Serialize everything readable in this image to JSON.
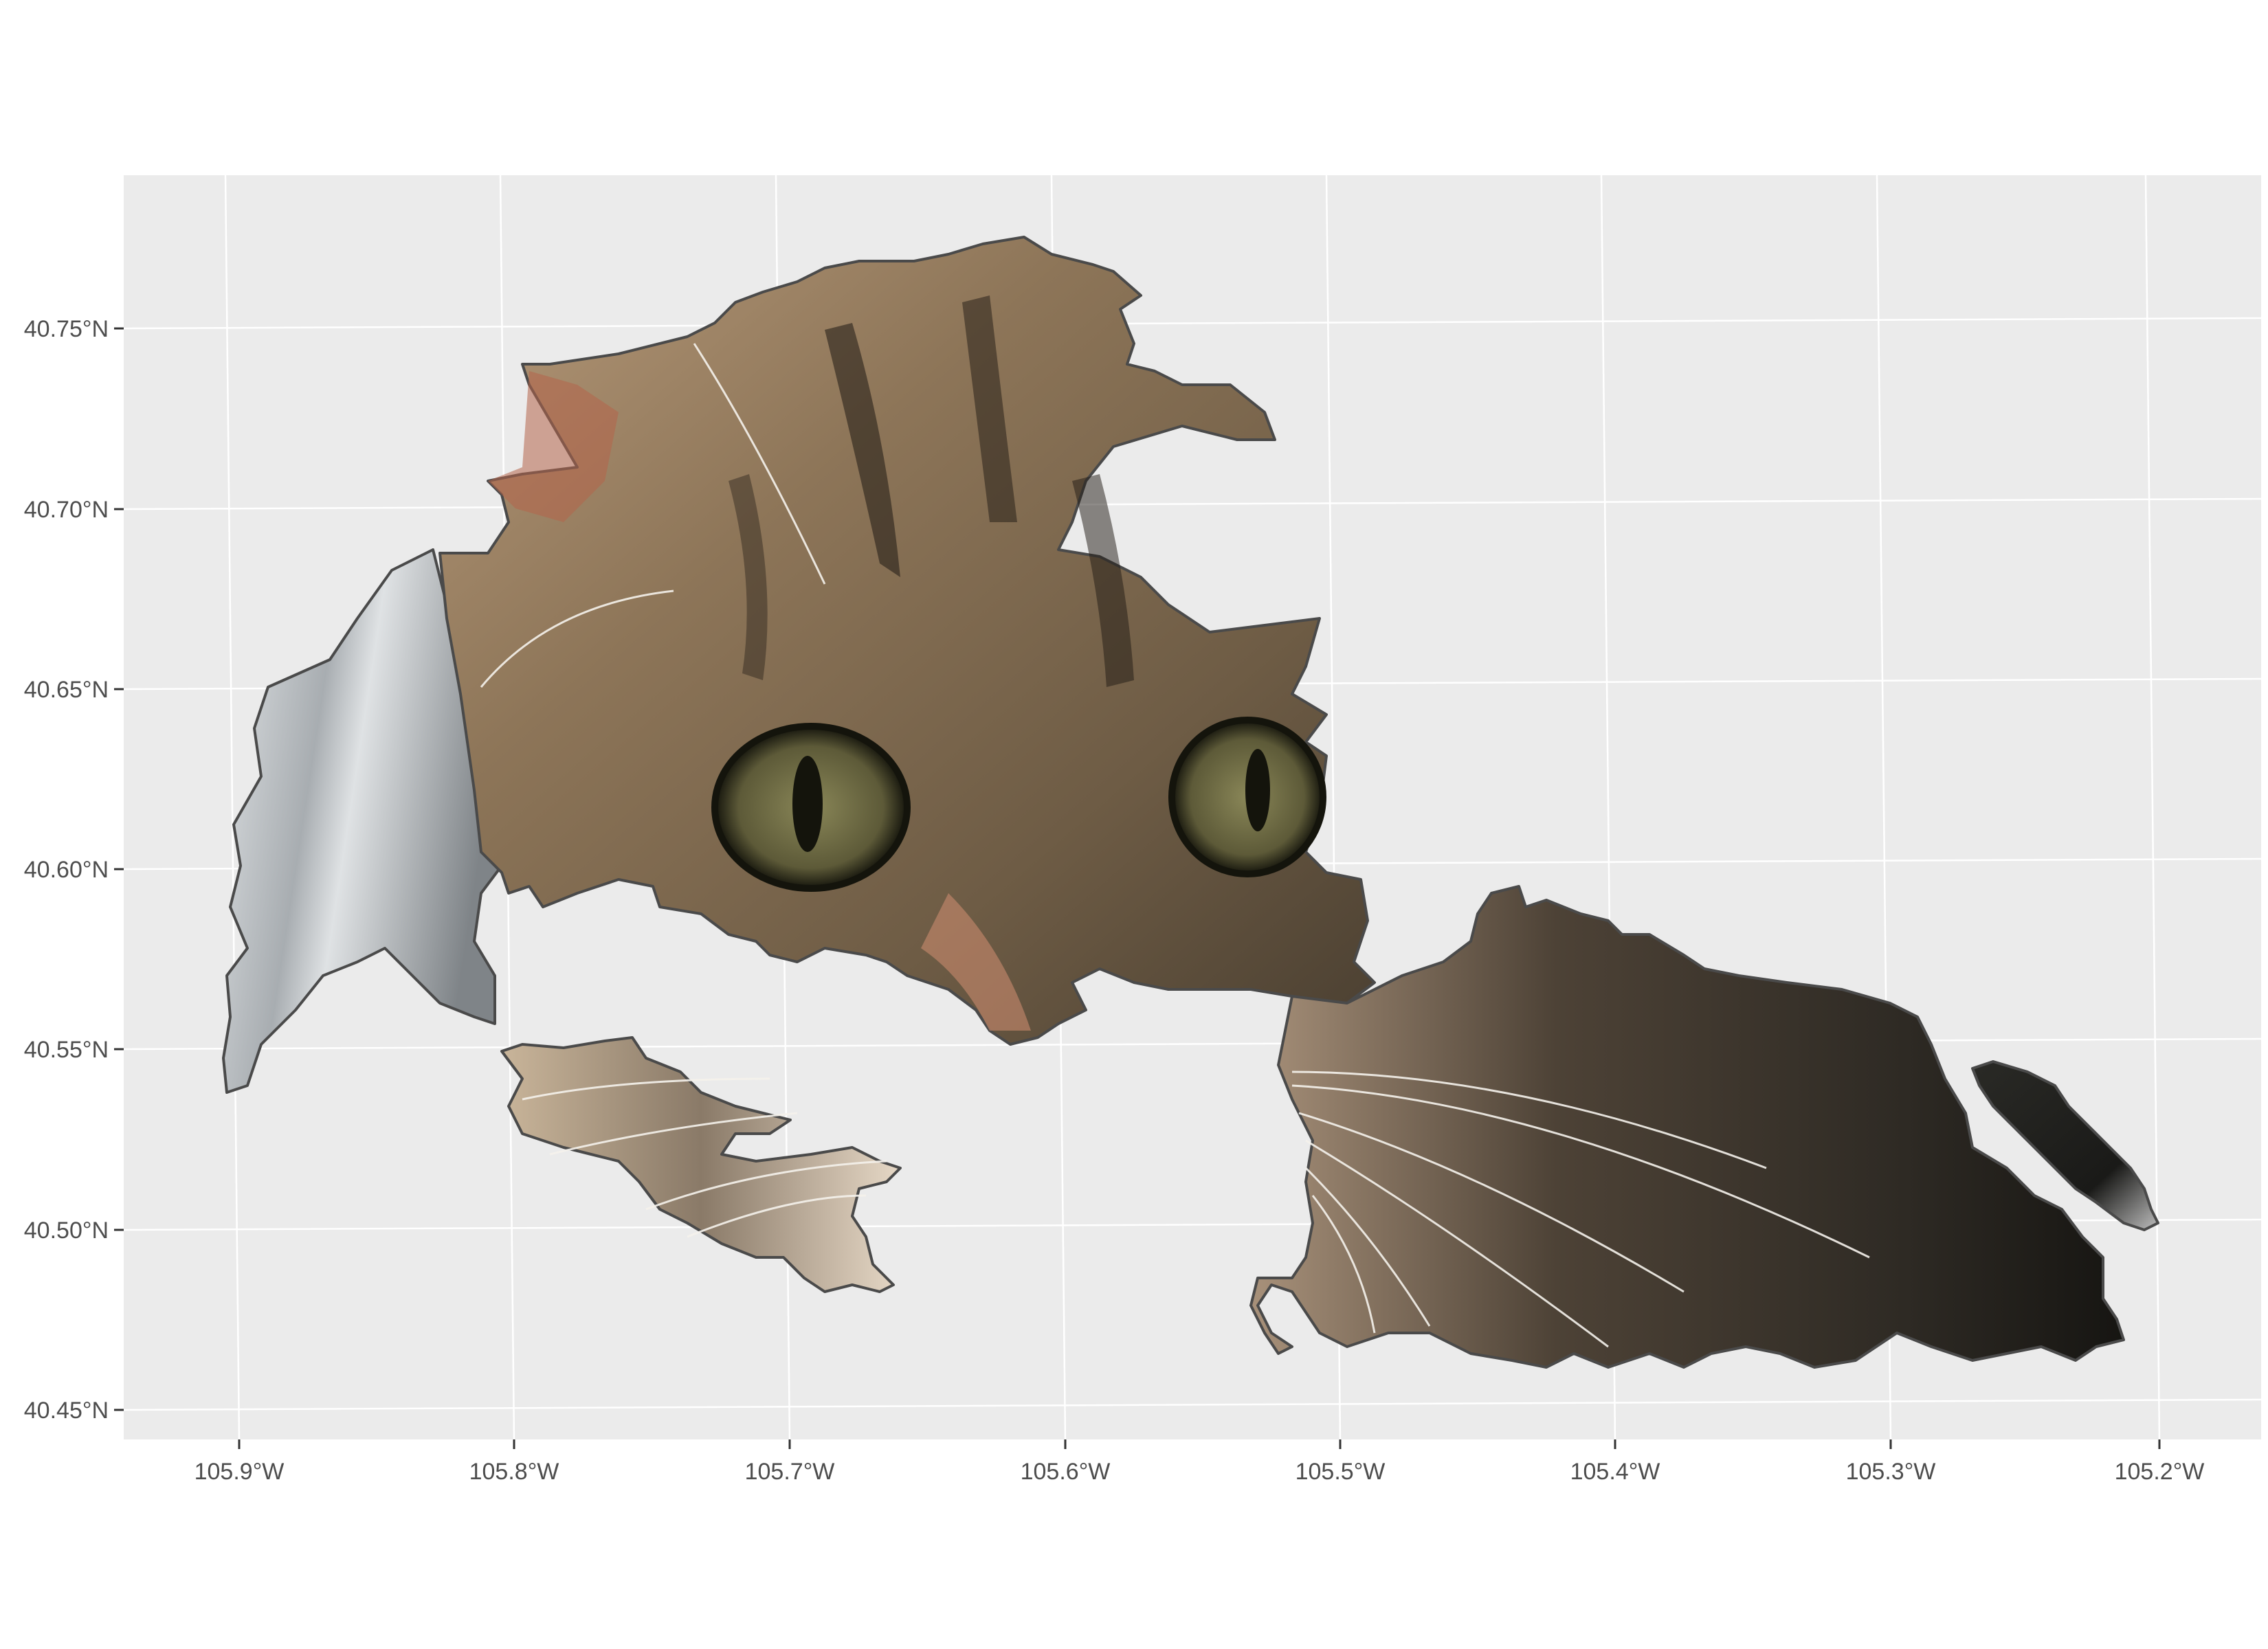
{
  "map": {
    "panel_background": "#ebebeb",
    "grid_color": "#ffffff",
    "axis_text_color": "#4d4d4d",
    "shape_outline_color": "#4a4a4a",
    "fill_description": "tabby-cat-photo-texture",
    "y_axis": {
      "ticks": [
        "40.75°N",
        "40.70°N",
        "40.65°N",
        "40.60°N",
        "40.55°N",
        "40.50°N",
        "40.45°N"
      ]
    },
    "x_axis": {
      "ticks": [
        "105.9°W",
        "105.8°W",
        "105.7°W",
        "105.6°W",
        "105.5°W",
        "105.4°W",
        "105.3°W",
        "105.2°W"
      ]
    },
    "colors": {
      "fur_light": "#c9b79c",
      "fur_mid": "#8a7458",
      "fur_dark": "#3b3126",
      "stripe": "#1f1a14",
      "ear_pink": "#b5654a",
      "nose": "#c98a6e",
      "eye_iris": "#6b6a45",
      "eye_dark": "#14140c",
      "silver": "#c9cfd4",
      "shadow": "#242420"
    }
  }
}
